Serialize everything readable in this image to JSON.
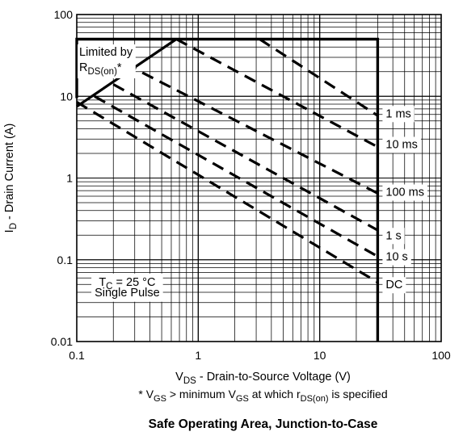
{
  "chart_data": {
    "type": "line",
    "title": "Safe Operating Area, Junction-to-Case",
    "xlabel": {
      "main": "V",
      "sub": "DS",
      "rest": " - Drain-to-Source Voltage (V)"
    },
    "ylabel": {
      "main": "I",
      "sub": "D",
      "rest": " - Drain Current (A)"
    },
    "xscale": "log",
    "yscale": "log",
    "xlim": [
      0.1,
      100
    ],
    "ylim": [
      0.01,
      100
    ],
    "xticks": [
      {
        "value": 0.1,
        "label": "0.1"
      },
      {
        "value": 1,
        "label": "1"
      },
      {
        "value": 10,
        "label": "10"
      },
      {
        "value": 100,
        "label": "100"
      }
    ],
    "yticks": [
      {
        "value": 0.01,
        "label": "0.01"
      },
      {
        "value": 0.1,
        "label": "0.1"
      },
      {
        "value": 1,
        "label": "1"
      },
      {
        "value": 10,
        "label": "10"
      },
      {
        "value": 100,
        "label": "100"
      }
    ],
    "grid": true,
    "footnote": {
      "prefix": "* V",
      "sub1": "GS",
      "mid1": " > minimum V",
      "sub2": "GS",
      "mid2": " at which r",
      "sub3": "DS(on)",
      "suffix": " is specified"
    },
    "limit_annotation": {
      "line1": "Limited by",
      "line2_main": "R",
      "line2_sub": "DS(on)",
      "line2_suffix": "*"
    },
    "condition_annotation": {
      "line1_main": "T",
      "line1_sub": "C",
      "line1_rest": " = 25 °C",
      "line2": "Single Pulse"
    },
    "boundary": {
      "name": "SOA limit",
      "style": "solid",
      "points": [
        [
          0.1,
          9.5
        ],
        [
          0.1,
          50
        ],
        [
          30,
          50
        ],
        [
          30,
          0.01
        ]
      ]
    },
    "series": [
      {
        "name": "rds-limit",
        "style": "solid",
        "points": [
          [
            0.1,
            7.5
          ],
          [
            0.66,
            50
          ]
        ]
      },
      {
        "name": "1 ms",
        "style": "dashed",
        "points": [
          [
            3.2,
            50
          ],
          [
            30,
            5.8
          ]
        ]
      },
      {
        "name": "10 ms",
        "style": "dashed",
        "points": [
          [
            0.66,
            50
          ],
          [
            30,
            2.4
          ]
        ]
      },
      {
        "name": "100 ms",
        "style": "dashed",
        "points": [
          [
            0.25,
            25
          ],
          [
            30,
            0.65
          ]
        ]
      },
      {
        "name": "1 s",
        "style": "dashed",
        "points": [
          [
            0.2,
            14
          ],
          [
            30,
            0.23
          ]
        ]
      },
      {
        "name": "10 s",
        "style": "dashed",
        "points": [
          [
            0.14,
            10
          ],
          [
            30,
            0.11
          ]
        ]
      },
      {
        "name": "DC",
        "style": "dashed",
        "points": [
          [
            0.1,
            8.5
          ],
          [
            30,
            0.053
          ]
        ]
      }
    ],
    "curve_labels": [
      {
        "text": "1 ms",
        "x": 30,
        "y": 6.2
      },
      {
        "text": "10 ms",
        "x": 30,
        "y": 2.6
      },
      {
        "text": "100 ms",
        "x": 30,
        "y": 0.68
      },
      {
        "text": "1 s",
        "x": 30,
        "y": 0.2
      },
      {
        "text": "10 s",
        "x": 30,
        "y": 0.11
      },
      {
        "text": "DC",
        "x": 30,
        "y": 0.05
      }
    ]
  }
}
